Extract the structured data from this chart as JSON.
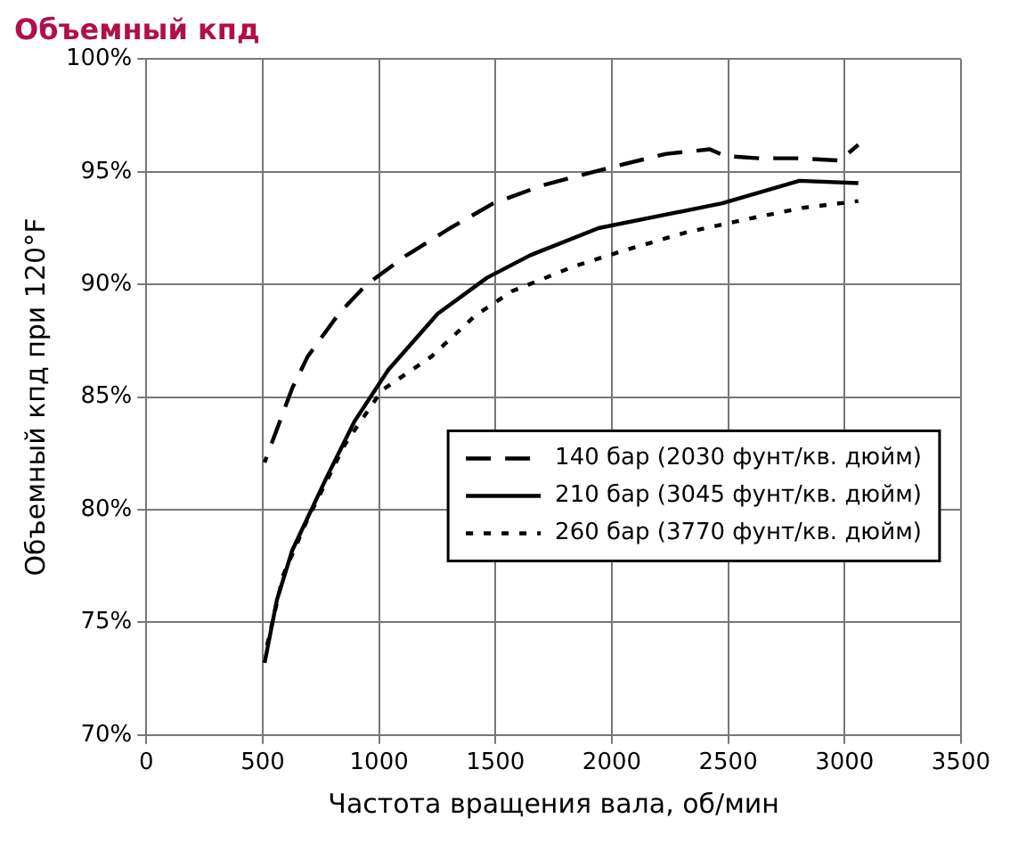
{
  "chart_data": {
    "type": "line",
    "title": "Объемный кпд",
    "xlabel": "Частота вращения вала, об/мин",
    "ylabel": "Объемный кпд при 120°F",
    "xlim": [
      0,
      3500
    ],
    "xticks": [
      0,
      500,
      1000,
      1500,
      2000,
      2500,
      3000,
      3500
    ],
    "ylim": [
      70,
      100
    ],
    "yticks": [
      {
        "value": 70,
        "label": "70%"
      },
      {
        "value": 75,
        "label": "75%"
      },
      {
        "value": 80,
        "label": "80%"
      },
      {
        "value": 85,
        "label": "85%"
      },
      {
        "value": 90,
        "label": "90%"
      },
      {
        "value": 95,
        "label": "95%"
      },
      {
        "value": 100,
        "label": "100%"
      }
    ],
    "grid": true,
    "legend": "right",
    "marker": "none",
    "series": [
      {
        "name": "140 бар (2030 фунт/кв. дюйм)",
        "color": "#000000",
        "line_style": "dashed",
        "x": [
          508,
          627,
          693,
          827,
          946,
          1119,
          1305,
          1491,
          1703,
          1996,
          2235,
          2421,
          2487,
          2633,
          2793,
          2979,
          3059
        ],
        "values": [
          82.1,
          85.4,
          86.8,
          88.7,
          90.0,
          91.3,
          92.5,
          93.6,
          94.4,
          95.2,
          95.8,
          96.0,
          95.7,
          95.6,
          95.6,
          95.5,
          96.2
        ]
      },
      {
        "name": "210 бар (3045 фунт/кв. дюйм)",
        "color": "#000000",
        "line_style": "solid",
        "x": [
          508,
          561,
          627,
          773,
          893,
          1039,
          1252,
          1464,
          1650,
          1943,
          2474,
          2806,
          3059
        ],
        "values": [
          73.2,
          76.0,
          78.2,
          81.4,
          83.9,
          86.2,
          88.7,
          90.3,
          91.3,
          92.5,
          93.6,
          94.6,
          94.5
        ]
      },
      {
        "name": "260 бар (3770 фунт/кв. дюйм)",
        "color": "#000000",
        "line_style": "dotted",
        "x": [
          508,
          588,
          694,
          853,
          1012,
          1225,
          1411,
          1571,
          1837,
          2050,
          2315,
          2580,
          2820,
          3059
        ],
        "values": [
          73.5,
          77.1,
          79.6,
          82.9,
          85.3,
          86.8,
          88.6,
          89.7,
          90.8,
          91.5,
          92.3,
          92.9,
          93.4,
          93.7
        ]
      }
    ]
  }
}
